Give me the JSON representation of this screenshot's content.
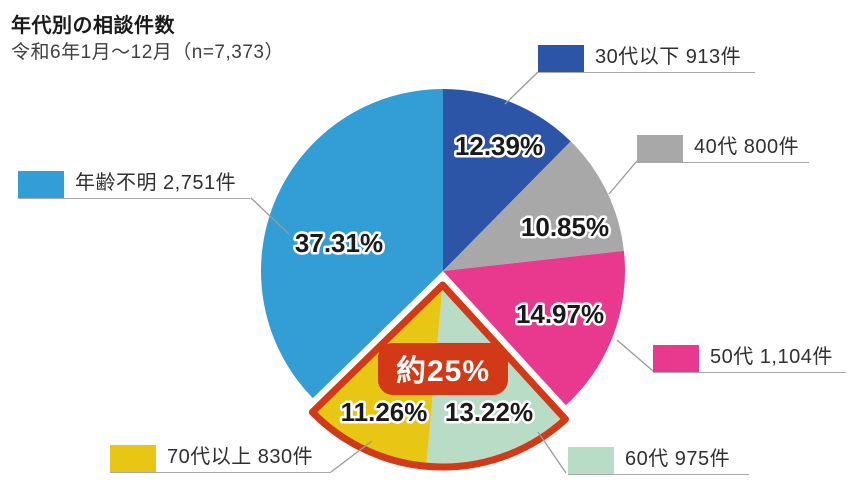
{
  "header": {
    "title": "年代別の相談件数",
    "subtitle": "令和6年1月～12月（n=7,373）"
  },
  "chart_data": {
    "type": "pie",
    "title": "年代別の相談件数",
    "subtitle": "令和6年1月～12月（n=7,373）",
    "n_total": 7373,
    "unit": "件",
    "start_angle": "top",
    "direction": "clockwise",
    "slices": [
      {
        "id": "under-30s",
        "name": "30代以下",
        "count": 913,
        "pct": 12.39,
        "pct_label": "12.39%",
        "legend_label": "30代以下 913件",
        "color": "#2D55A7",
        "highlighted": false
      },
      {
        "id": "40s",
        "name": "40代",
        "count": 800,
        "pct": 10.85,
        "pct_label": "10.85%",
        "legend_label": "40代 800件",
        "color": "#A8A8A8",
        "highlighted": false
      },
      {
        "id": "50s",
        "name": "50代",
        "count": 1104,
        "pct": 14.97,
        "pct_label": "14.97%",
        "legend_label": "50代 1,104件",
        "color": "#E9398F",
        "highlighted": false
      },
      {
        "id": "60s",
        "name": "60代",
        "count": 975,
        "pct": 13.22,
        "pct_label": "13.22%",
        "legend_label": "60代 975件",
        "color": "#B9DCC7",
        "highlighted": true
      },
      {
        "id": "70s-plus",
        "name": "70代以上",
        "count": 830,
        "pct": 11.26,
        "pct_label": "11.26%",
        "legend_label": "70代以上 830件",
        "color": "#E7C614",
        "highlighted": true
      },
      {
        "id": "age-unknown",
        "name": "年齢不明",
        "count": 2751,
        "pct": 37.31,
        "pct_label": "37.31%",
        "legend_label": "年齢不明 2,751件",
        "color": "#339DD6",
        "highlighted": false
      }
    ],
    "highlight": {
      "label": "約25%",
      "color": "#D23917",
      "includes": [
        "60代",
        "70代以上"
      ]
    },
    "colors": {
      "label_text": "#1a1a1a",
      "label_halo": "#ffffff",
      "leader_line": "#9a9a9a"
    }
  }
}
